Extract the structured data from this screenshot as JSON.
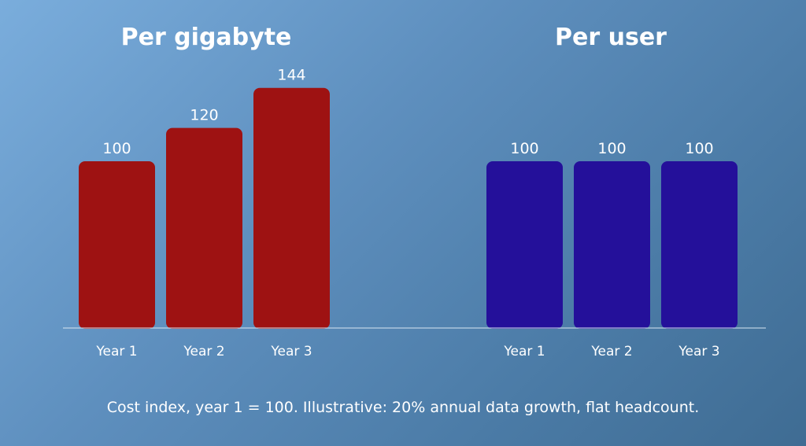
{
  "chart_data": [
    {
      "type": "bar",
      "title": "Per gigabyte",
      "categories": [
        "Year 1",
        "Year 2",
        "Year 3"
      ],
      "values": [
        100,
        120,
        144
      ],
      "color": "#9e1212"
    },
    {
      "type": "bar",
      "title": "Per user",
      "categories": [
        "Year 1",
        "Year 2",
        "Year 3"
      ],
      "values": [
        100,
        100,
        100
      ],
      "color": "#24109a"
    }
  ],
  "footnote": "Cost index, year 1 = 100. Illustrative: 20% annual data growth, flat headcount.",
  "baseline_color": "#d8e6f2"
}
